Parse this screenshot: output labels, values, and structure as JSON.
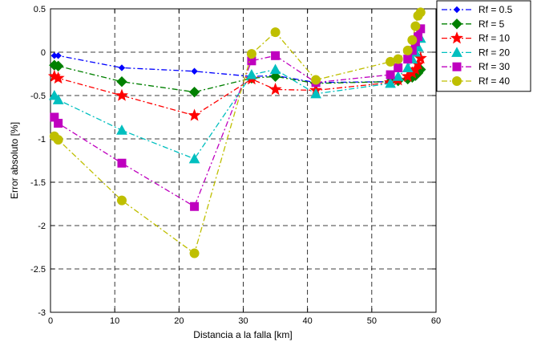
{
  "chart_data": {
    "type": "line",
    "title": "",
    "xlabel": "Distancia a la falla [km]",
    "ylabel": "Error absoluto [%]",
    "xlim": [
      0,
      60
    ],
    "ylim": [
      -3,
      0.5
    ],
    "xticks": [
      0,
      10,
      20,
      30,
      40,
      50,
      60
    ],
    "yticks": [
      -3,
      -2.5,
      -2,
      -1.5,
      -1,
      -0.5,
      0,
      0.5
    ],
    "xtick_labels": [
      "0",
      "10",
      "20",
      "30",
      "40",
      "50",
      "60"
    ],
    "ytick_labels": [
      "-3",
      "-2.5",
      "-2",
      "-1.5",
      "-1",
      "-0.5",
      "0",
      "0.5"
    ],
    "grid": true,
    "legend_position": "outside-top-right",
    "series": [
      {
        "name": "Rf = 0.5",
        "color": "#0000ff",
        "marker": "diamond-small",
        "x": [
          0.6,
          1.2,
          11.1,
          22.4,
          31.3,
          35.0,
          41.3,
          52.9,
          54.1,
          55.6,
          56.3,
          56.8,
          57.2,
          57.6
        ],
        "y": [
          -0.04,
          -0.04,
          -0.18,
          -0.22,
          -0.28,
          -0.27,
          -0.35,
          -0.34,
          -0.32,
          -0.3,
          -0.28,
          -0.26,
          -0.24,
          -0.22
        ]
      },
      {
        "name": "Rf = 5",
        "color": "#008000",
        "marker": "diamond",
        "x": [
          0.6,
          1.2,
          11.1,
          22.4,
          31.3,
          35.0,
          41.3,
          52.9,
          54.1,
          55.6,
          56.3,
          56.8,
          57.2,
          57.6
        ],
        "y": [
          -0.15,
          -0.16,
          -0.34,
          -0.46,
          -0.3,
          -0.28,
          -0.36,
          -0.34,
          -0.33,
          -0.31,
          -0.29,
          -0.27,
          -0.24,
          -0.2
        ]
      },
      {
        "name": "Rf = 10",
        "color": "#ff0000",
        "marker": "star",
        "x": [
          0.6,
          1.2,
          11.1,
          22.4,
          31.3,
          35.0,
          41.3,
          52.9,
          54.1,
          55.6,
          56.3,
          56.8,
          57.2,
          57.6
        ],
        "y": [
          -0.28,
          -0.3,
          -0.5,
          -0.73,
          -0.31,
          -0.43,
          -0.44,
          -0.35,
          -0.32,
          -0.28,
          -0.24,
          -0.2,
          -0.14,
          -0.07
        ]
      },
      {
        "name": "Rf = 20",
        "color": "#00bfbf",
        "marker": "triangle",
        "x": [
          0.6,
          1.2,
          11.1,
          22.4,
          31.3,
          35.0,
          41.3,
          52.9,
          54.1,
          55.6,
          56.3,
          56.8,
          57.2,
          57.6
        ],
        "y": [
          -0.5,
          -0.55,
          -0.9,
          -1.23,
          -0.26,
          -0.2,
          -0.48,
          -0.36,
          -0.28,
          -0.18,
          -0.08,
          0.0,
          0.06,
          0.16
        ]
      },
      {
        "name": "Rf = 30",
        "color": "#bf00bf",
        "marker": "square",
        "x": [
          0.6,
          1.2,
          11.1,
          22.4,
          31.3,
          35.0,
          41.3,
          52.9,
          54.1,
          55.6,
          56.3,
          56.8,
          57.2,
          57.6
        ],
        "y": [
          -0.75,
          -0.82,
          -1.28,
          -1.78,
          -0.1,
          -0.04,
          -0.35,
          -0.26,
          -0.18,
          -0.08,
          0.02,
          0.12,
          0.18,
          0.27
        ]
      },
      {
        "name": "Rf = 40",
        "color": "#bfbf00",
        "marker": "circle",
        "x": [
          0.6,
          1.2,
          11.1,
          22.4,
          31.3,
          35.0,
          41.3,
          52.9,
          54.1,
          55.6,
          56.3,
          56.8,
          57.2,
          57.6
        ],
        "y": [
          -0.97,
          -1.01,
          -1.71,
          -2.32,
          -0.02,
          0.23,
          -0.32,
          -0.11,
          -0.08,
          0.02,
          0.14,
          0.3,
          0.42,
          0.46
        ]
      }
    ]
  }
}
